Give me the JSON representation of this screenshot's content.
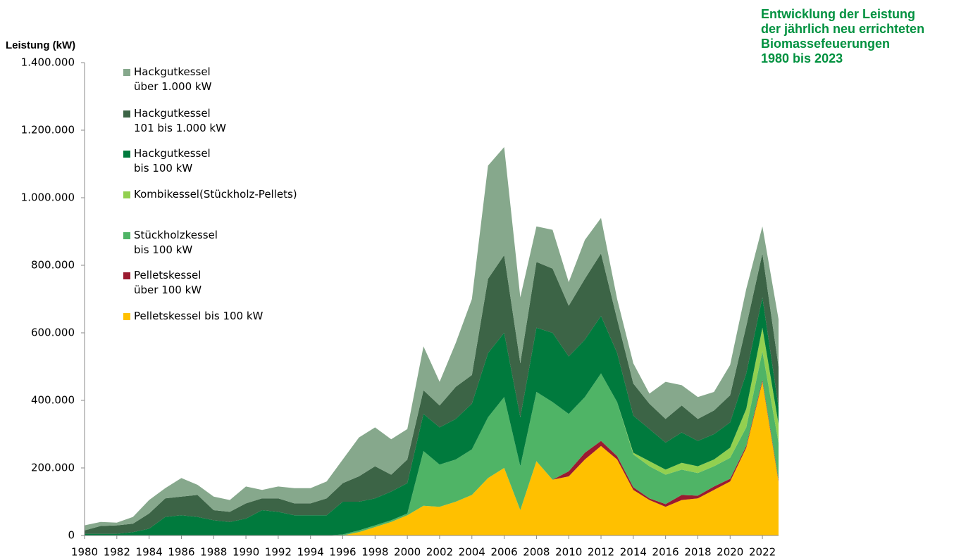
{
  "chart_data": {
    "type": "stacked-area",
    "title": "Entwicklung der Leistung\nder jährlich neu errichteten\nBiomassefeuerungen\n1980 bis 2023",
    "y_label": "Leistung (kW)",
    "x": [
      1980,
      1981,
      1982,
      1983,
      1984,
      1985,
      1986,
      1987,
      1988,
      1989,
      1990,
      1991,
      1992,
      1993,
      1994,
      1995,
      1996,
      1997,
      1998,
      1999,
      2000,
      2001,
      2002,
      2003,
      2004,
      2005,
      2006,
      2007,
      2008,
      2009,
      2010,
      2011,
      2012,
      2013,
      2014,
      2015,
      2016,
      2017,
      2018,
      2019,
      2020,
      2021,
      2022,
      2023
    ],
    "xlim": [
      1980,
      2023
    ],
    "xticks": [
      1980,
      1982,
      1984,
      1986,
      1988,
      1990,
      1992,
      1994,
      1996,
      1998,
      2000,
      2002,
      2004,
      2006,
      2008,
      2010,
      2012,
      2014,
      2016,
      2018,
      2020,
      2022
    ],
    "ylim": [
      0,
      1400000
    ],
    "yticks": [
      0,
      {
        "value": 200000,
        "label": "200.000"
      },
      {
        "value": 400000,
        "label": "400.000"
      },
      {
        "value": 600000,
        "label": "600.000"
      },
      {
        "value": 800000,
        "label": "800.000"
      },
      {
        "value": 1000000,
        "label": "1.000.000"
      },
      {
        "value": 1200000,
        "label": "1.200.000"
      },
      {
        "value": 1400000,
        "label": "1.400.000"
      }
    ],
    "series": [
      {
        "name": "Pelletskessel bis 100 kW",
        "color": "#ffc000",
        "values": [
          0,
          0,
          0,
          0,
          0,
          0,
          0,
          0,
          0,
          0,
          0,
          0,
          0,
          0,
          0,
          0,
          0,
          10000,
          25000,
          40000,
          60000,
          88000,
          85000,
          100000,
          120000,
          170000,
          200000,
          75000,
          220000,
          165000,
          175000,
          225000,
          265000,
          225000,
          135000,
          105000,
          85000,
          105000,
          110000,
          135000,
          160000,
          260000,
          455000,
          160000
        ]
      },
      {
        "name": "Pelletskessel\nüber 100 kW",
        "color": "#9b1b30",
        "values": [
          0,
          0,
          0,
          0,
          0,
          0,
          0,
          0,
          0,
          0,
          0,
          0,
          0,
          0,
          0,
          0,
          0,
          0,
          0,
          0,
          0,
          0,
          0,
          0,
          0,
          0,
          0,
          0,
          0,
          0,
          15000,
          20000,
          15000,
          10000,
          8000,
          5000,
          8000,
          15000,
          8000,
          10000,
          8000,
          5000,
          5000,
          5000
        ]
      },
      {
        "name": "Stückholzkessel\nbis 100 kW",
        "color": "#4fb466",
        "values": [
          0,
          0,
          0,
          0,
          0,
          0,
          0,
          0,
          0,
          0,
          0,
          0,
          0,
          0,
          0,
          0,
          3000,
          5000,
          5000,
          5000,
          5000,
          162000,
          125000,
          125000,
          135000,
          180000,
          210000,
          130000,
          205000,
          230000,
          170000,
          165000,
          200000,
          160000,
          97000,
          95000,
          87000,
          75000,
          67000,
          60000,
          62000,
          55000,
          85000,
          110000
        ]
      },
      {
        "name": "Kombikessel(Stückholz-Pellets)",
        "color": "#92d050",
        "values": [
          0,
          0,
          0,
          0,
          0,
          0,
          0,
          0,
          0,
          0,
          0,
          0,
          0,
          0,
          0,
          0,
          0,
          0,
          0,
          0,
          0,
          0,
          0,
          0,
          0,
          0,
          0,
          0,
          0,
          0,
          0,
          0,
          0,
          0,
          5000,
          15000,
          15000,
          20000,
          20000,
          20000,
          30000,
          55000,
          70000,
          55000
        ]
      },
      {
        "name": "Hackgutkessel\nbis 100 kW",
        "color": "#007a3d",
        "values": [
          5000,
          5000,
          5000,
          10000,
          20000,
          55000,
          60000,
          55000,
          45000,
          40000,
          50000,
          75000,
          70000,
          60000,
          60000,
          60000,
          97000,
          85000,
          80000,
          85000,
          90000,
          110000,
          110000,
          120000,
          135000,
          190000,
          190000,
          145000,
          190000,
          205000,
          170000,
          170000,
          170000,
          145000,
          110000,
          95000,
          80000,
          90000,
          75000,
          75000,
          75000,
          105000,
          90000,
          50000
        ]
      },
      {
        "name": "Hackgutkessel\n101 bis 1.000 kW",
        "color": "#3c6446",
        "values": [
          10000,
          23000,
          25000,
          25000,
          45000,
          55000,
          55000,
          65000,
          30000,
          30000,
          45000,
          35000,
          40000,
          35000,
          35000,
          50000,
          55000,
          75000,
          95000,
          50000,
          70000,
          70000,
          65000,
          95000,
          85000,
          220000,
          230000,
          160000,
          195000,
          190000,
          150000,
          180000,
          185000,
          100000,
          95000,
          75000,
          70000,
          80000,
          65000,
          70000,
          80000,
          140000,
          130000,
          120000
        ]
      },
      {
        "name": "Hackgutkessel\nüber 1.000 kW",
        "color": "#86a88c",
        "values": [
          15000,
          12000,
          8000,
          20000,
          40000,
          30000,
          55000,
          30000,
          40000,
          35000,
          50000,
          25000,
          35000,
          45000,
          45000,
          50000,
          70000,
          115000,
          115000,
          105000,
          90000,
          130000,
          70000,
          130000,
          225000,
          335000,
          320000,
          195000,
          105000,
          115000,
          70000,
          115000,
          105000,
          60000,
          60000,
          30000,
          110000,
          60000,
          65000,
          55000,
          90000,
          110000,
          80000,
          140000
        ]
      }
    ]
  }
}
